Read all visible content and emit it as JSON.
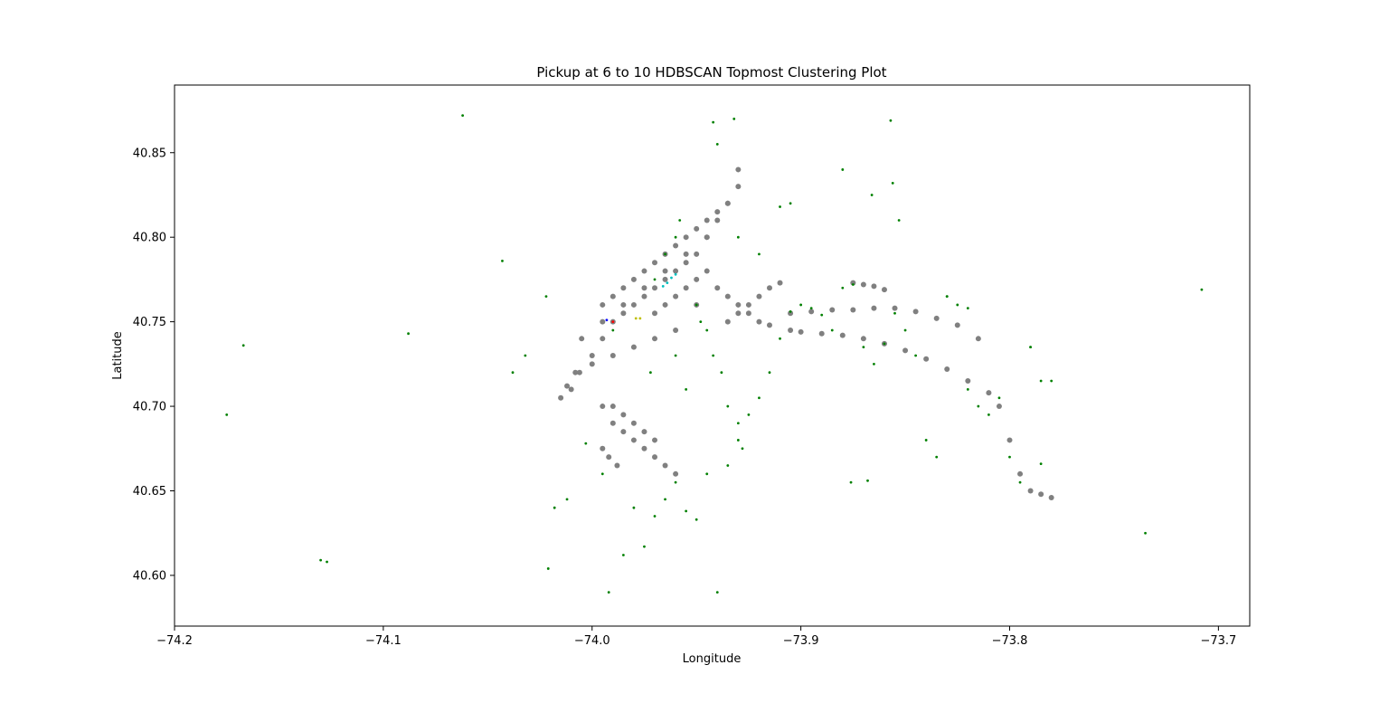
{
  "chart_data": {
    "type": "scatter",
    "title": "Pickup at 6 to 10 HDBSCAN Topmost Clustering Plot",
    "xlabel": "Longitude",
    "ylabel": "Latitude",
    "xlim": [
      -74.2,
      -73.685
    ],
    "ylim": [
      40.57,
      40.89
    ],
    "xticks": [
      -74.2,
      -74.1,
      -74.0,
      -73.9,
      -73.8,
      -73.7
    ],
    "xtick_labels": [
      "−74.2",
      "−74.1",
      "−74.0",
      "−73.9",
      "−73.8",
      "−73.7"
    ],
    "yticks": [
      40.6,
      40.65,
      40.7,
      40.75,
      40.8,
      40.85
    ],
    "ytick_labels": [
      "40.60",
      "40.65",
      "40.70",
      "40.75",
      "40.80",
      "40.85"
    ],
    "grid": false,
    "legend": "none",
    "colors": {
      "gray": "#808080",
      "green": "#008000",
      "cyan": "#00bfbf",
      "yellow": "#bfbf00",
      "red": "#ff0000",
      "blue": "#0000ff"
    },
    "series": [
      {
        "color": "gray",
        "x": [
          -74.01,
          -74.006,
          -74.0,
          -73.995,
          -73.99,
          -73.985,
          -73.98,
          -73.975,
          -73.97,
          -73.965,
          -73.96,
          -73.955,
          -73.95,
          -73.945,
          -73.94,
          -74.005,
          -73.995,
          -73.985,
          -73.975,
          -73.965,
          -73.955,
          -73.945,
          -73.935,
          -73.93,
          -73.995,
          -73.99,
          -73.985,
          -73.98,
          -73.975,
          -73.97,
          -73.965,
          -73.96,
          -73.955,
          -73.95,
          -73.945,
          -73.94,
          -73.935,
          -73.93,
          -74.015,
          -74.012,
          -74.008,
          -74.0,
          -73.99,
          -73.98,
          -73.97,
          -73.96,
          -73.95,
          -73.97,
          -73.965,
          -73.96,
          -73.955,
          -73.95,
          -73.945,
          -73.94,
          -73.935,
          -73.93,
          -73.925,
          -73.92,
          -73.915,
          -73.905,
          -73.9,
          -73.89,
          -73.88,
          -73.87,
          -73.86,
          -73.85,
          -73.84,
          -73.83,
          -73.82,
          -73.81,
          -73.905,
          -73.895,
          -73.885,
          -73.875,
          -73.865,
          -73.855,
          -73.845,
          -73.835,
          -73.825,
          -73.815,
          -73.805,
          -73.8,
          -73.795,
          -73.79,
          -73.785,
          -73.78,
          -73.92,
          -73.915,
          -73.91,
          -73.93,
          -73.925,
          -73.935,
          -73.875,
          -73.87,
          -73.865,
          -73.86,
          -73.995,
          -73.99,
          -73.985,
          -73.98,
          -73.975,
          -73.97,
          -73.965,
          -73.96,
          -73.99,
          -73.985,
          -73.98,
          -73.975,
          -73.97,
          -73.995,
          -73.992,
          -73.988
        ],
        "y": [
          40.71,
          40.72,
          40.73,
          40.74,
          40.75,
          40.755,
          40.76,
          40.765,
          40.77,
          40.775,
          40.78,
          40.785,
          40.79,
          40.8,
          40.81,
          40.74,
          40.75,
          40.76,
          40.77,
          40.78,
          40.79,
          40.8,
          40.82,
          40.84,
          40.76,
          40.765,
          40.77,
          40.775,
          40.78,
          40.785,
          40.79,
          40.795,
          40.8,
          40.805,
          40.81,
          40.815,
          40.82,
          40.83,
          40.705,
          40.712,
          40.72,
          40.725,
          40.73,
          40.735,
          40.74,
          40.745,
          40.76,
          40.755,
          40.76,
          40.765,
          40.77,
          40.775,
          40.78,
          40.77,
          40.765,
          40.76,
          40.755,
          40.75,
          40.748,
          40.745,
          40.744,
          40.743,
          40.742,
          40.74,
          40.737,
          40.733,
          40.728,
          40.722,
          40.715,
          40.708,
          40.755,
          40.756,
          40.757,
          40.757,
          40.758,
          40.758,
          40.756,
          40.752,
          40.748,
          40.74,
          40.7,
          40.68,
          40.66,
          40.65,
          40.648,
          40.646,
          40.765,
          40.77,
          40.773,
          40.755,
          40.76,
          40.75,
          40.773,
          40.772,
          40.771,
          40.769,
          40.7,
          40.69,
          40.685,
          40.68,
          40.675,
          40.67,
          40.665,
          40.66,
          40.7,
          40.695,
          40.69,
          40.685,
          40.68,
          40.675,
          40.67,
          40.665
        ]
      },
      {
        "color": "green",
        "x": [
          -74.175,
          -74.167,
          -74.13,
          -74.127,
          -74.088,
          -74.062,
          -74.043,
          -74.038,
          -74.032,
          -74.022,
          -74.021,
          -74.018,
          -74.012,
          -74.003,
          -73.995,
          -73.992,
          -73.985,
          -73.98,
          -73.975,
          -73.97,
          -73.965,
          -73.96,
          -73.955,
          -73.95,
          -73.945,
          -73.94,
          -73.935,
          -73.93,
          -73.925,
          -73.92,
          -73.915,
          -73.91,
          -73.905,
          -73.9,
          -73.895,
          -73.89,
          -73.885,
          -73.88,
          -73.875,
          -73.87,
          -73.865,
          -73.86,
          -73.855,
          -73.85,
          -73.845,
          -73.84,
          -73.835,
          -73.83,
          -73.825,
          -73.82,
          -73.815,
          -73.81,
          -73.805,
          -73.8,
          -73.795,
          -73.79,
          -73.785,
          -73.78,
          -73.91,
          -73.905,
          -73.942,
          -73.94,
          -73.932,
          -73.99,
          -73.972,
          -73.96,
          -73.955,
          -73.93,
          -73.92,
          -73.88,
          -73.866,
          -73.857,
          -73.856,
          -73.853,
          -73.876,
          -73.868,
          -73.735,
          -73.708,
          -73.83,
          -73.82,
          -73.79,
          -73.785,
          -73.97,
          -73.965,
          -73.96,
          -73.958,
          -73.95,
          -73.948,
          -73.945,
          -73.942,
          -73.938,
          -73.935,
          -73.93,
          -73.928
        ],
        "y": [
          40.695,
          40.736,
          40.609,
          40.608,
          40.743,
          40.872,
          40.786,
          40.72,
          40.73,
          40.765,
          40.604,
          40.64,
          40.645,
          40.678,
          40.66,
          40.59,
          40.612,
          40.64,
          40.617,
          40.635,
          40.645,
          40.655,
          40.638,
          40.633,
          40.66,
          40.59,
          40.665,
          40.68,
          40.695,
          40.705,
          40.72,
          40.74,
          40.756,
          40.76,
          40.758,
          40.754,
          40.745,
          40.77,
          40.772,
          40.735,
          40.725,
          40.737,
          40.755,
          40.745,
          40.73,
          40.68,
          40.67,
          40.765,
          40.76,
          40.71,
          40.7,
          40.695,
          40.705,
          40.67,
          40.655,
          40.735,
          40.666,
          40.715,
          40.818,
          40.82,
          40.868,
          40.855,
          40.87,
          40.745,
          40.72,
          40.73,
          40.71,
          40.8,
          40.79,
          40.84,
          40.825,
          40.869,
          40.832,
          40.81,
          40.655,
          40.656,
          40.625,
          40.769,
          40.765,
          40.758,
          40.735,
          40.715,
          40.775,
          40.79,
          40.8,
          40.81,
          40.76,
          40.75,
          40.745,
          40.73,
          40.72,
          40.7,
          40.69,
          40.675
        ]
      },
      {
        "color": "cyan",
        "x": [
          -73.966,
          -73.964,
          -73.962,
          -73.96
        ],
        "y": [
          40.771,
          40.773,
          40.776,
          40.778
        ]
      },
      {
        "color": "yellow",
        "x": [
          -73.979,
          -73.977
        ],
        "y": [
          40.752,
          40.752
        ]
      },
      {
        "color": "red",
        "x": [
          -73.99
        ],
        "y": [
          40.75
        ]
      },
      {
        "color": "blue",
        "x": [
          -73.993
        ],
        "y": [
          40.751
        ]
      }
    ]
  }
}
